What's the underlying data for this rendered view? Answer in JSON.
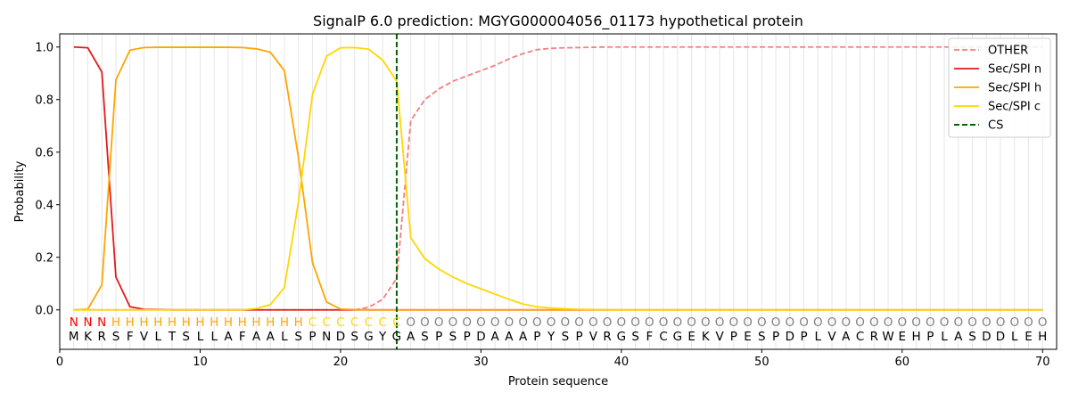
{
  "chart_data": {
    "type": "line",
    "title": "SignalP 6.0 prediction: MGYG000004056_01173 hypothetical protein",
    "xlabel": "Protein sequence",
    "ylabel": "Probability",
    "xlim": [
      0,
      71
    ],
    "ylim": [
      -0.15,
      1.05
    ],
    "x_ticks": [
      0,
      10,
      20,
      30,
      40,
      50,
      60,
      70
    ],
    "y_ticks": [
      0.0,
      0.2,
      0.4,
      0.6,
      0.8,
      1.0
    ],
    "y_tick_labels": [
      "0.0",
      "0.2",
      "0.4",
      "0.6",
      "0.8",
      "1.0"
    ],
    "grid": "vertical lines at each residue",
    "legend_position": "top-right",
    "sequence": [
      "M",
      "K",
      "R",
      "S",
      "F",
      "V",
      "L",
      "T",
      "S",
      "L",
      "L",
      "A",
      "F",
      "A",
      "A",
      "L",
      "S",
      "P",
      "N",
      "D",
      "S",
      "G",
      "Y",
      "G",
      "A",
      "S",
      "P",
      "S",
      "P",
      "D",
      "A",
      "A",
      "A",
      "P",
      "Y",
      "S",
      "P",
      "V",
      "R",
      "G",
      "S",
      "F",
      "C",
      "G",
      "E",
      "K",
      "V",
      "P",
      "E",
      "S",
      "P",
      "D",
      "P",
      "L",
      "V",
      "A",
      "C",
      "R",
      "W",
      "E",
      "H",
      "P",
      "L",
      "A",
      "S",
      "D",
      "D",
      "L",
      "E",
      "H"
    ],
    "labels": [
      "N",
      "N",
      "N",
      "H",
      "H",
      "H",
      "H",
      "H",
      "H",
      "H",
      "H",
      "H",
      "H",
      "H",
      "H",
      "H",
      "H",
      "C",
      "C",
      "C",
      "C",
      "C",
      "C",
      "C",
      "O",
      "O",
      "O",
      "O",
      "O",
      "O",
      "O",
      "O",
      "O",
      "O",
      "O",
      "O",
      "O",
      "O",
      "O",
      "O",
      "O",
      "O",
      "O",
      "O",
      "O",
      "O",
      "O",
      "O",
      "O",
      "O",
      "O",
      "O",
      "O",
      "O",
      "O",
      "O",
      "O",
      "O",
      "O",
      "O",
      "O",
      "O",
      "O",
      "O",
      "O",
      "O",
      "O",
      "O",
      "O",
      "O"
    ],
    "label_colors": {
      "N": "#ff0000",
      "H": "#ffa500",
      "C": "#ffd700",
      "O": "#808080"
    },
    "cleavage_site": 24,
    "series": [
      {
        "name": "OTHER",
        "color": "#f08080",
        "dash": "dashed",
        "values": [
          0,
          0,
          0,
          0,
          0,
          0,
          0,
          0,
          0,
          0,
          0,
          0,
          0,
          0,
          0,
          0,
          0,
          0,
          0,
          0,
          0,
          0.01,
          0.04,
          0.12,
          0.72,
          0.8,
          0.84,
          0.87,
          0.89,
          0.91,
          0.93,
          0.955,
          0.975,
          0.99,
          0.995,
          0.997,
          0.998,
          0.999,
          1,
          1,
          1,
          1,
          1,
          1,
          1,
          1,
          1,
          1,
          1,
          1,
          1,
          1,
          1,
          1,
          1,
          1,
          1,
          1,
          1,
          1,
          1,
          1,
          1,
          1,
          1,
          1,
          1,
          1,
          1,
          1
        ]
      },
      {
        "name": "Sec/SPI n",
        "color": "#e31a1c",
        "dash": "solid",
        "values": [
          1.0,
          0.997,
          0.905,
          0.125,
          0.012,
          0.002,
          0.001,
          0,
          0,
          0,
          0,
          0,
          0,
          0,
          0,
          0,
          0,
          0,
          0,
          0,
          0,
          0,
          0,
          0,
          0,
          0,
          0,
          0,
          0,
          0,
          0,
          0,
          0,
          0,
          0,
          0,
          0,
          0,
          0,
          0,
          0,
          0,
          0,
          0,
          0,
          0,
          0,
          0,
          0,
          0,
          0,
          0,
          0,
          0,
          0,
          0,
          0,
          0,
          0,
          0,
          0,
          0,
          0,
          0,
          0,
          0,
          0,
          0,
          0,
          0
        ]
      },
      {
        "name": "Sec/SPI h",
        "color": "#ffa500",
        "dash": "solid",
        "values": [
          0,
          0.003,
          0.095,
          0.875,
          0.988,
          0.998,
          0.999,
          0.999,
          0.999,
          0.999,
          0.999,
          0.999,
          0.998,
          0.993,
          0.98,
          0.91,
          0.58,
          0.18,
          0.03,
          0.003,
          0.001,
          0,
          0,
          0,
          0,
          0,
          0,
          0,
          0,
          0,
          0,
          0,
          0,
          0,
          0,
          0,
          0,
          0,
          0,
          0,
          0,
          0,
          0,
          0,
          0,
          0,
          0,
          0,
          0,
          0,
          0,
          0,
          0,
          0,
          0,
          0,
          0,
          0,
          0,
          0,
          0,
          0,
          0,
          0,
          0,
          0,
          0,
          0,
          0,
          0
        ]
      },
      {
        "name": "Sec/SPI c",
        "color": "#ffd700",
        "dash": "solid",
        "values": [
          0,
          0,
          0,
          0,
          0,
          0,
          0,
          0,
          0,
          0,
          0,
          0,
          0,
          0.005,
          0.02,
          0.085,
          0.41,
          0.82,
          0.965,
          0.997,
          0.998,
          0.992,
          0.95,
          0.87,
          0.275,
          0.195,
          0.155,
          0.125,
          0.1,
          0.08,
          0.06,
          0.04,
          0.022,
          0.012,
          0.007,
          0.004,
          0.002,
          0.001,
          0,
          0,
          0,
          0,
          0,
          0,
          0,
          0,
          0,
          0,
          0,
          0,
          0,
          0,
          0,
          0,
          0,
          0,
          0,
          0,
          0,
          0,
          0,
          0,
          0,
          0,
          0,
          0,
          0,
          0,
          0,
          0
        ]
      },
      {
        "name": "CS",
        "color": "#006400",
        "dash": "dashed",
        "vertical_at": 24
      }
    ]
  }
}
